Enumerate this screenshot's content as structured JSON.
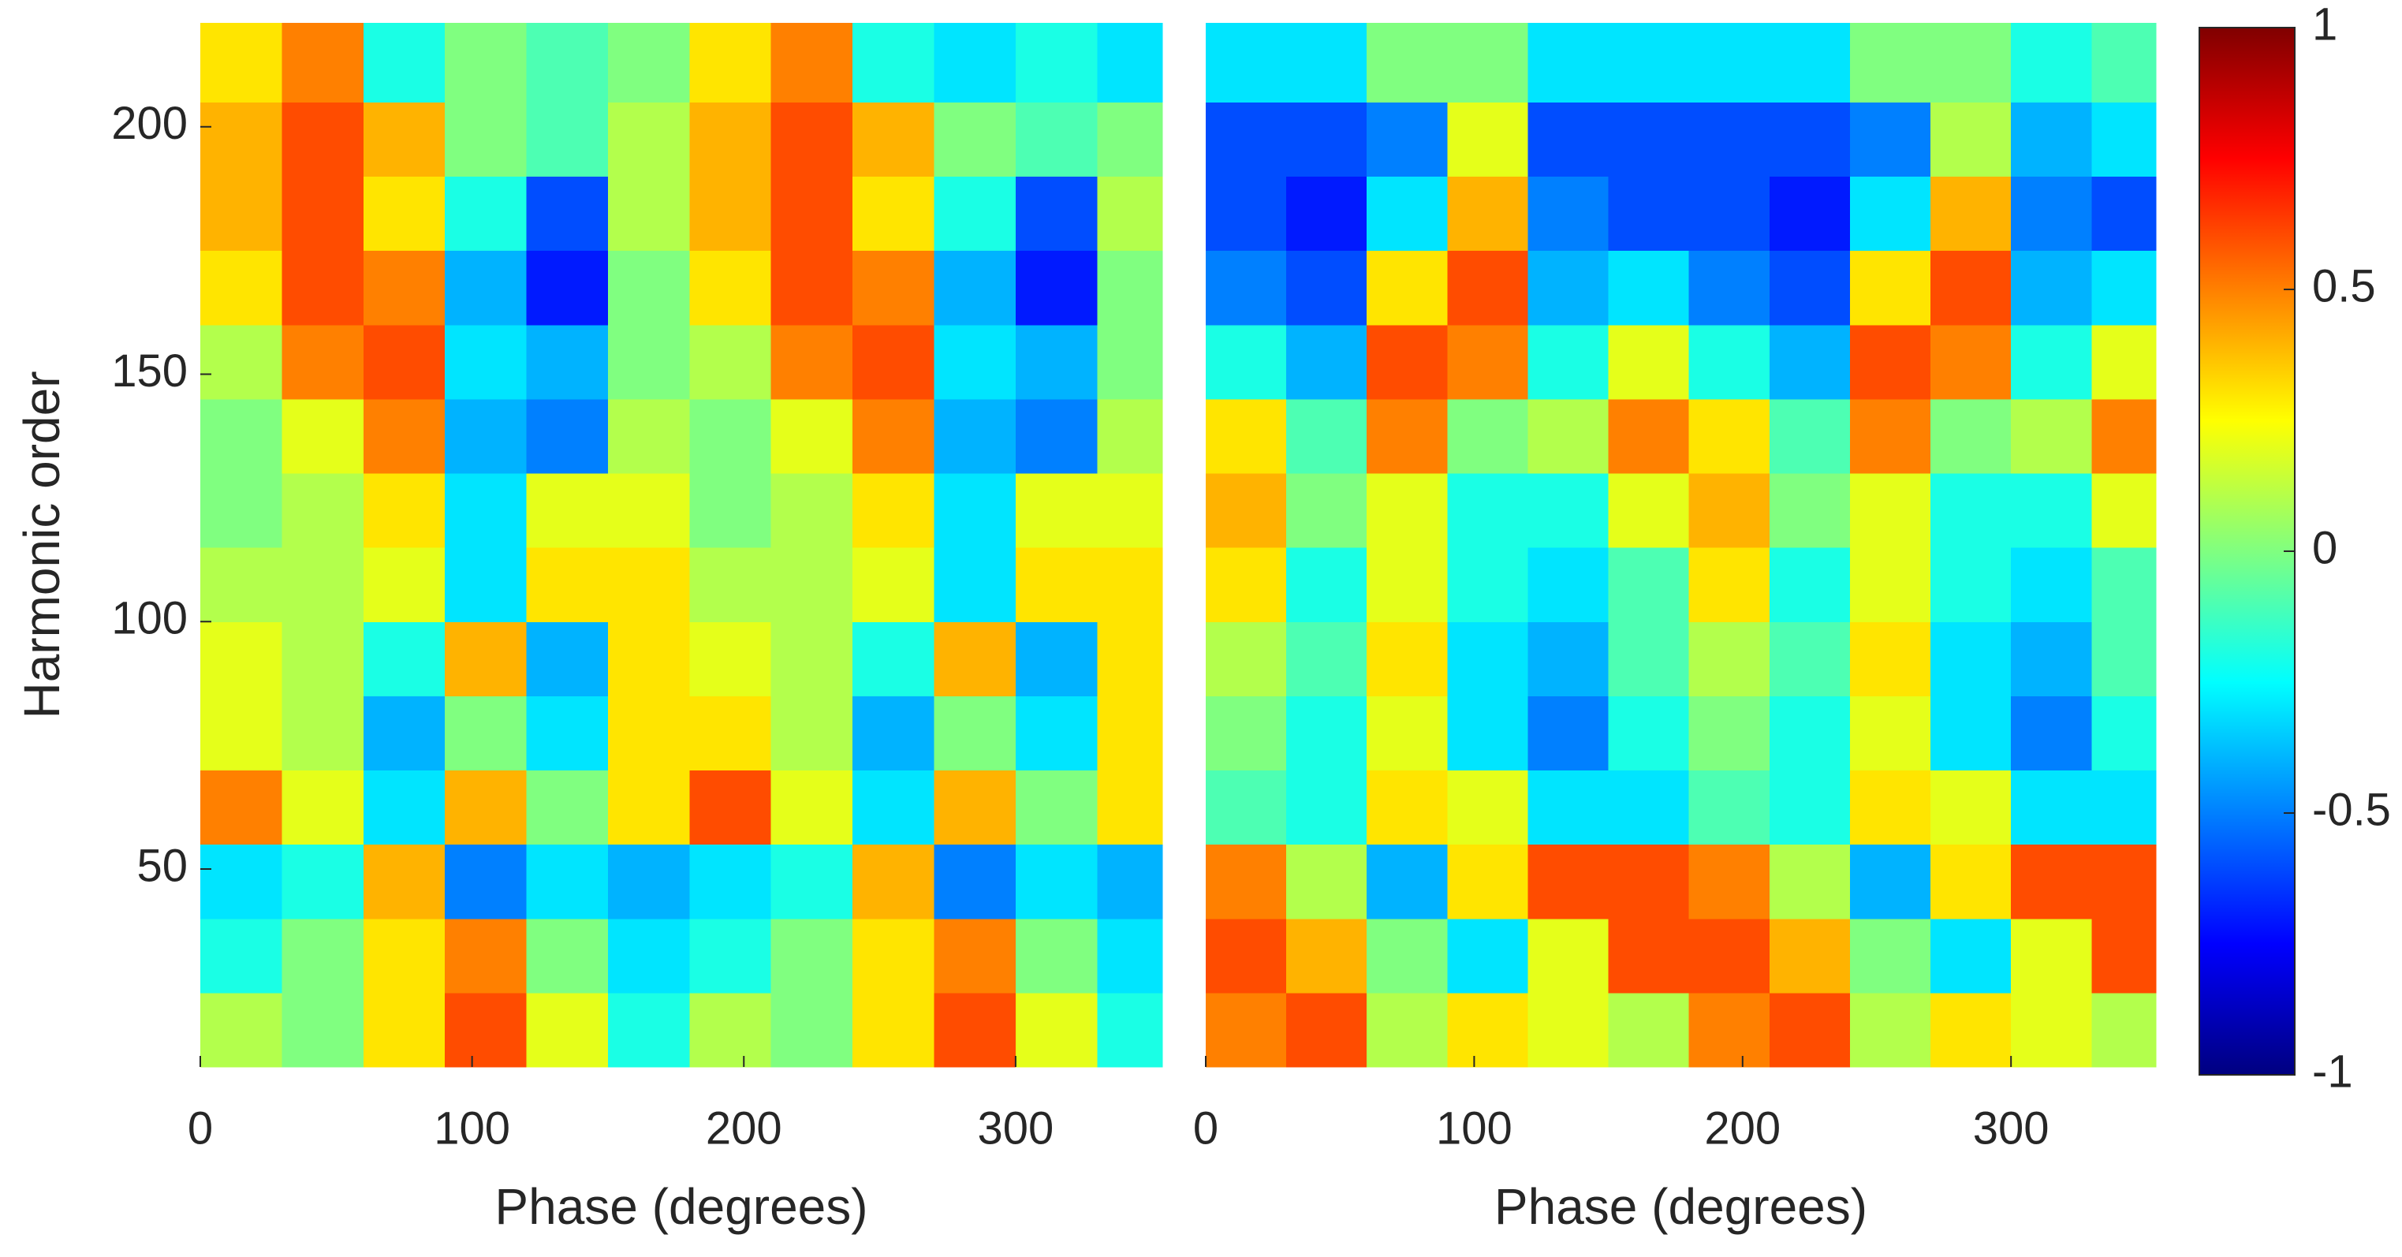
{
  "chart_data": [
    {
      "type": "heatmap",
      "xlabel": "Phase (degrees)",
      "ylabel": "Harmonic order",
      "x": [
        15,
        45,
        75,
        105,
        135,
        165,
        195,
        225,
        255,
        285,
        315,
        345
      ],
      "y": [
        17.5,
        32.5,
        47.5,
        62.5,
        77.5,
        92.5,
        107.5,
        122.5,
        137.5,
        152.5,
        167.5,
        182.5,
        197.5,
        212.5
      ],
      "z": [
        [
          0.1,
          0.0,
          0.3,
          0.6,
          0.2,
          -0.2,
          0.1,
          0.0,
          0.3,
          0.6,
          0.2,
          -0.2
        ],
        [
          -0.2,
          0.0,
          0.3,
          0.5,
          0.0,
          -0.3,
          -0.2,
          0.0,
          0.3,
          0.5,
          0.0,
          -0.3
        ],
        [
          -0.3,
          -0.2,
          0.4,
          -0.5,
          -0.3,
          -0.4,
          -0.3,
          -0.2,
          0.4,
          -0.5,
          -0.3,
          -0.4
        ],
        [
          0.5,
          0.2,
          -0.3,
          0.4,
          0.0,
          0.3,
          0.6,
          0.2,
          -0.3,
          0.4,
          0.0,
          0.3
        ],
        [
          0.2,
          0.1,
          -0.4,
          0.0,
          -0.3,
          0.3,
          0.3,
          0.1,
          -0.4,
          0.0,
          -0.3,
          0.3
        ],
        [
          0.2,
          0.1,
          -0.2,
          0.4,
          -0.4,
          0.3,
          0.2,
          0.1,
          -0.2,
          0.4,
          -0.4,
          0.3
        ],
        [
          0.1,
          0.1,
          0.2,
          -0.3,
          0.3,
          0.3,
          0.1,
          0.1,
          0.2,
          -0.3,
          0.3,
          0.3
        ],
        [
          0.0,
          0.1,
          0.3,
          -0.3,
          0.2,
          0.2,
          0.0,
          0.1,
          0.3,
          -0.3,
          0.2,
          0.2
        ],
        [
          0.0,
          0.2,
          0.5,
          -0.4,
          -0.5,
          0.1,
          0.0,
          0.2,
          0.5,
          -0.4,
          -0.5,
          0.1
        ],
        [
          0.1,
          0.5,
          0.6,
          -0.3,
          -0.4,
          0.0,
          0.1,
          0.5,
          0.6,
          -0.3,
          -0.4,
          0.0
        ],
        [
          0.3,
          0.6,
          0.5,
          -0.4,
          -0.7,
          0.0,
          0.3,
          0.6,
          0.5,
          -0.4,
          -0.7,
          0.0
        ],
        [
          0.4,
          0.6,
          0.3,
          -0.2,
          -0.6,
          0.1,
          0.4,
          0.6,
          0.3,
          -0.2,
          -0.6,
          0.1
        ],
        [
          0.4,
          0.6,
          0.4,
          0.0,
          -0.1,
          0.1,
          0.4,
          0.6,
          0.4,
          0.0,
          -0.1,
          0.0
        ],
        [
          0.3,
          0.5,
          -0.2,
          0.0,
          -0.1,
          0.0,
          0.3,
          0.5,
          -0.2,
          -0.3,
          -0.2,
          -0.3
        ]
      ],
      "xlim": [
        0,
        354
      ],
      "ylim": [
        10,
        221
      ],
      "xticks": [
        0,
        100,
        200,
        300
      ],
      "yticks": [
        50,
        100,
        150,
        200
      ]
    },
    {
      "type": "heatmap",
      "xlabel": "Phase (degrees)",
      "x": [
        15,
        45,
        75,
        105,
        135,
        165,
        195,
        225,
        255,
        285,
        315,
        345
      ],
      "y": [
        17.5,
        32.5,
        47.5,
        62.5,
        77.5,
        92.5,
        107.5,
        122.5,
        137.5,
        152.5,
        167.5,
        182.5,
        197.5,
        212.5
      ],
      "z": [
        [
          0.5,
          0.6,
          0.1,
          0.3,
          0.2,
          0.1,
          0.5,
          0.6,
          0.1,
          0.3,
          0.2,
          0.1
        ],
        [
          0.6,
          0.4,
          0.0,
          -0.3,
          0.2,
          0.6,
          0.6,
          0.4,
          0.0,
          -0.3,
          0.2,
          0.6
        ],
        [
          0.5,
          0.1,
          -0.4,
          0.3,
          0.6,
          0.6,
          0.5,
          0.1,
          -0.4,
          0.3,
          0.6,
          0.6
        ],
        [
          -0.1,
          -0.2,
          0.3,
          0.2,
          -0.3,
          -0.3,
          -0.1,
          -0.2,
          0.3,
          0.2,
          -0.3,
          -0.3
        ],
        [
          0.0,
          -0.2,
          0.2,
          -0.3,
          -0.5,
          -0.2,
          0.0,
          -0.2,
          0.2,
          -0.3,
          -0.5,
          -0.2
        ],
        [
          0.1,
          -0.1,
          0.3,
          -0.3,
          -0.4,
          -0.1,
          0.1,
          -0.1,
          0.3,
          -0.3,
          -0.4,
          -0.1
        ],
        [
          0.3,
          -0.2,
          0.2,
          -0.2,
          -0.3,
          -0.1,
          0.3,
          -0.2,
          0.2,
          -0.2,
          -0.3,
          -0.1
        ],
        [
          0.4,
          0.0,
          0.2,
          -0.2,
          -0.2,
          0.2,
          0.4,
          0.0,
          0.2,
          -0.2,
          -0.2,
          0.2
        ],
        [
          0.3,
          -0.1,
          0.5,
          0.0,
          0.1,
          0.5,
          0.3,
          -0.1,
          0.5,
          0.0,
          0.1,
          0.5
        ],
        [
          -0.2,
          -0.4,
          0.6,
          0.5,
          -0.2,
          0.2,
          -0.2,
          -0.4,
          0.6,
          0.5,
          -0.2,
          0.2
        ],
        [
          -0.5,
          -0.6,
          0.3,
          0.6,
          -0.4,
          -0.3,
          -0.5,
          -0.6,
          0.3,
          0.6,
          -0.4,
          -0.3
        ],
        [
          -0.6,
          -0.7,
          -0.3,
          0.4,
          -0.5,
          -0.6,
          -0.6,
          -0.7,
          -0.3,
          0.4,
          -0.5,
          -0.6
        ],
        [
          -0.6,
          -0.6,
          -0.5,
          0.2,
          -0.6,
          -0.6,
          -0.6,
          -0.6,
          -0.5,
          0.1,
          -0.4,
          -0.3
        ],
        [
          -0.3,
          -0.3,
          0.0,
          0.0,
          -0.3,
          -0.3,
          -0.3,
          -0.3,
          0.0,
          0.0,
          -0.2,
          -0.1
        ]
      ],
      "xlim": [
        0,
        354
      ],
      "ylim": [
        10,
        221
      ],
      "xticks": [
        0,
        100,
        200,
        300
      ]
    }
  ],
  "colorbar": {
    "colormap": "jet",
    "clim": [
      -1,
      1
    ],
    "ticks": [
      -1,
      -0.5,
      0,
      0.5,
      1
    ]
  }
}
